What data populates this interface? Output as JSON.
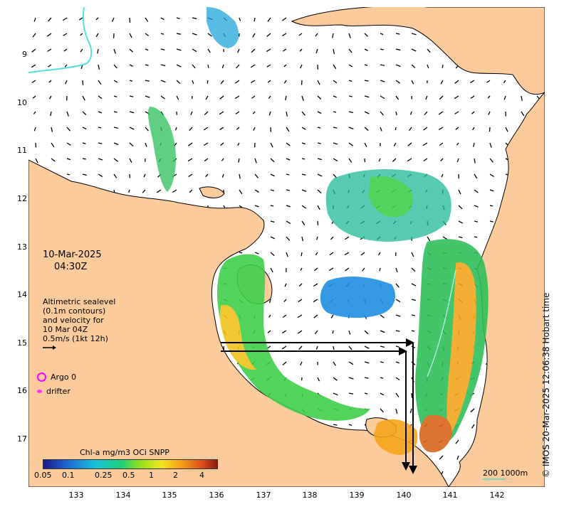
{
  "map": {
    "date": "10-Mar-2025",
    "time": "04:30Z",
    "lat_ticks": [
      "9",
      "10",
      "11",
      "12",
      "13",
      "14",
      "15",
      "16",
      "17"
    ],
    "lon_ticks": [
      "133",
      "134",
      "135",
      "136",
      "137",
      "138",
      "139",
      "140",
      "141",
      "142"
    ],
    "legend_lines": [
      "Altimetric sealevel",
      "(0.1m contours)",
      "and velocity for",
      "10 Mar 04Z",
      "0.5m/s (1kt 12h)"
    ],
    "argo_label": "Argo 0",
    "drifter_label": "drifter",
    "colorbar_title": "Chl-a mg/m3 OCi SNPP",
    "colorbar_ticks": [
      "0.05",
      "0.1",
      "0.25",
      "0.5",
      "1",
      "2",
      "4"
    ],
    "scale_label": "200  1000m",
    "credit": "© IMOS 20-Mar-2025 12:06:38 Hobart time",
    "colors": {
      "land": "#fbcb9c",
      "ocean": "#ffffff",
      "coast_line": "#000000",
      "argo": "#ff00ff",
      "drifter": "#ff33ff",
      "contour": "#55dddd"
    }
  }
}
